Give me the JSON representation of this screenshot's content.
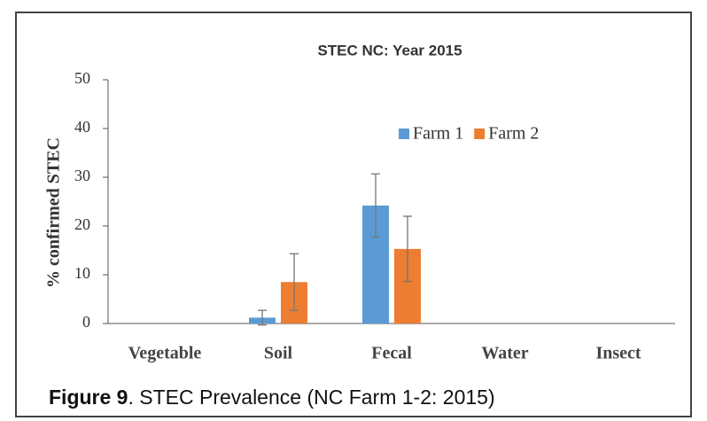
{
  "chart_data": {
    "type": "bar",
    "title": "STEC NC: Year 2015",
    "y_label": "% confirmed STEC",
    "categories": [
      "Vegetable",
      "Soil",
      "Fecal",
      "Water",
      "Insect"
    ],
    "series": [
      {
        "name": "Farm 1",
        "color": "#5b9bd5",
        "values": [
          0,
          1.2,
          24.2,
          0,
          0
        ],
        "errors": [
          0,
          1.5,
          6.5,
          0,
          0
        ]
      },
      {
        "name": "Farm 2",
        "color": "#ed7d31",
        "values": [
          0,
          8.5,
          15.3,
          0,
          0
        ],
        "errors": [
          0,
          5.8,
          6.7,
          0,
          0
        ]
      }
    ],
    "ylim": [
      0,
      50
    ],
    "yticks": [
      0,
      10,
      20,
      30,
      40,
      50
    ],
    "grid": false,
    "legend": "top",
    "caption_label": "Figure 9",
    "caption": ". STEC Prevalence (NC Farm 1-2: 2015)"
  }
}
